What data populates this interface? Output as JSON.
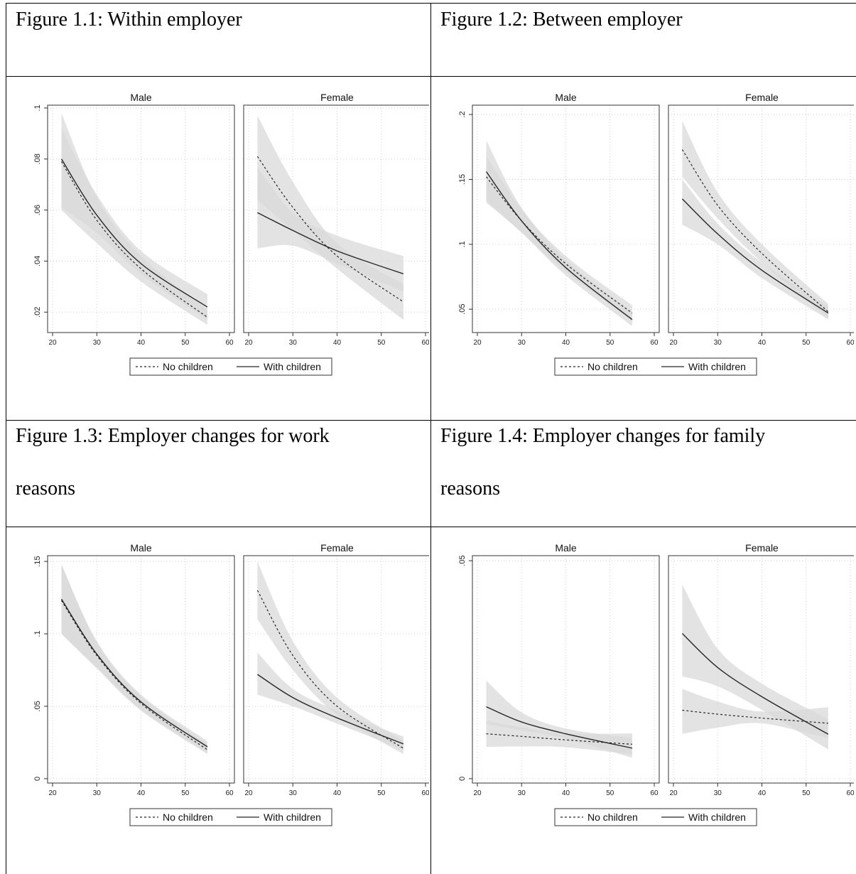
{
  "captions": [
    {
      "line1": "Figure 1.1: Within employer",
      "line2": ""
    },
    {
      "line1": "Figure 1.2: Between employer",
      "line2": ""
    },
    {
      "line1": "Figure 1.3: Employer changes for work",
      "line2": "reasons"
    },
    {
      "line1": "Figure 1.4: Employer changes for family",
      "line2": "reasons"
    }
  ],
  "colors": {
    "line": "#262626",
    "ci_band": "#d9d9d9",
    "grid": "#d0d0d0"
  },
  "chart_data": [
    {
      "type": "line",
      "panels": [
        "Male",
        "Female"
      ],
      "x_ticks": [
        "20",
        "30",
        "40",
        "50",
        "60"
      ],
      "xlim": [
        20,
        60
      ],
      "ylim": [
        0.012,
        0.1
      ],
      "y_ticks": [
        {
          "v": 0.1,
          "label": ".1"
        },
        {
          "v": 0.08,
          "label": ".08"
        },
        {
          "v": 0.06,
          "label": ".06"
        },
        {
          "v": 0.04,
          "label": ".04"
        },
        {
          "v": 0.02,
          "label": ".02"
        }
      ],
      "legend": [
        "No children",
        "With children"
      ],
      "x": [
        22,
        30,
        40,
        55
      ],
      "series": {
        "Male": {
          "No children": {
            "values": [
              0.079,
              0.056,
              0.037,
              0.018
            ],
            "lo": [
              0.06,
              0.047,
              0.032,
              0.015
            ],
            "hi": [
              0.098,
              0.065,
              0.042,
              0.021
            ]
          },
          "With children": {
            "values": [
              0.08,
              0.058,
              0.039,
              0.022
            ],
            "lo": [
              0.061,
              0.051,
              0.035,
              0.017
            ],
            "hi": [
              0.092,
              0.066,
              0.044,
              0.027
            ]
          }
        },
        "Female": {
          "No children": {
            "values": [
              0.081,
              0.061,
              0.042,
              0.024
            ],
            "lo": [
              0.064,
              0.052,
              0.037,
              0.017
            ],
            "hi": [
              0.097,
              0.071,
              0.047,
              0.031
            ]
          },
          "With children": {
            "values": [
              0.059,
              0.052,
              0.044,
              0.035
            ],
            "lo": [
              0.045,
              0.046,
              0.039,
              0.028
            ],
            "hi": [
              0.077,
              0.059,
              0.05,
              0.042
            ]
          }
        }
      }
    },
    {
      "type": "line",
      "panels": [
        "Male",
        "Female"
      ],
      "x_ticks": [
        "20",
        "30",
        "40",
        "50",
        "60"
      ],
      "xlim": [
        20,
        60
      ],
      "ylim": [
        0.032,
        0.205
      ],
      "y_ticks": [
        {
          "v": 0.2,
          "label": ".2"
        },
        {
          "v": 0.15,
          "label": ".15"
        },
        {
          "v": 0.1,
          "label": ".1"
        },
        {
          "v": 0.05,
          "label": ".05"
        }
      ],
      "legend": [
        "No children",
        "With children"
      ],
      "x": [
        22,
        30,
        40,
        55
      ],
      "series": {
        "Male": {
          "No children": {
            "values": [
              0.152,
              0.118,
              0.085,
              0.047
            ],
            "lo": [
              0.134,
              0.109,
              0.079,
              0.041
            ],
            "hi": [
              0.18,
              0.128,
              0.091,
              0.053
            ]
          },
          "With children": {
            "values": [
              0.156,
              0.118,
              0.082,
              0.042
            ],
            "lo": [
              0.132,
              0.109,
              0.076,
              0.037
            ],
            "hi": [
              0.168,
              0.127,
              0.088,
              0.048
            ]
          }
        },
        "Female": {
          "No children": {
            "values": [
              0.173,
              0.13,
              0.093,
              0.048
            ],
            "lo": [
              0.152,
              0.12,
              0.086,
              0.043
            ],
            "hi": [
              0.195,
              0.14,
              0.1,
              0.054
            ]
          },
          "With children": {
            "values": [
              0.135,
              0.108,
              0.08,
              0.047
            ],
            "lo": [
              0.115,
              0.1,
              0.074,
              0.042
            ],
            "hi": [
              0.15,
              0.116,
              0.086,
              0.052
            ]
          }
        }
      }
    },
    {
      "type": "line",
      "panels": [
        "Male",
        "Female"
      ],
      "x_ticks": [
        "20",
        "30",
        "40",
        "50",
        "60"
      ],
      "xlim": [
        20,
        60
      ],
      "ylim": [
        -0.003,
        0.152
      ],
      "y_ticks": [
        {
          "v": 0.15,
          "label": ".15"
        },
        {
          "v": 0.1,
          "label": ".1"
        },
        {
          "v": 0.05,
          "label": ".05"
        },
        {
          "v": 0,
          "label": "0"
        }
      ],
      "legend": [
        "No children",
        "With children"
      ],
      "x": [
        22,
        30,
        40,
        55
      ],
      "series": {
        "Male": {
          "No children": {
            "values": [
              0.123,
              0.085,
              0.052,
              0.02
            ],
            "lo": [
              0.1,
              0.076,
              0.047,
              0.017
            ],
            "hi": [
              0.148,
              0.094,
              0.057,
              0.024
            ]
          },
          "With children": {
            "values": [
              0.124,
              0.086,
              0.053,
              0.022
            ],
            "lo": [
              0.1,
              0.077,
              0.048,
              0.018
            ],
            "hi": [
              0.148,
              0.095,
              0.058,
              0.026
            ]
          }
        },
        "Female": {
          "No children": {
            "values": [
              0.13,
              0.085,
              0.05,
              0.021
            ],
            "lo": [
              0.11,
              0.075,
              0.044,
              0.017
            ],
            "hi": [
              0.15,
              0.095,
              0.056,
              0.026
            ]
          },
          "With children": {
            "values": [
              0.072,
              0.056,
              0.042,
              0.024
            ],
            "lo": [
              0.058,
              0.05,
              0.038,
              0.02
            ],
            "hi": [
              0.087,
              0.062,
              0.047,
              0.029
            ]
          }
        }
      }
    },
    {
      "type": "line",
      "panels": [
        "Male",
        "Female"
      ],
      "x_ticks": [
        "20",
        "30",
        "40",
        "50",
        "60"
      ],
      "xlim": [
        20,
        60
      ],
      "ylim": [
        -0.001,
        0.0505
      ],
      "y_ticks": [
        {
          "v": 0.05,
          "label": ".05"
        },
        {
          "v": 0,
          "label": "0"
        }
      ],
      "legend": [
        "No children",
        "With children"
      ],
      "x": [
        22,
        30,
        40,
        55
      ],
      "series": {
        "Male": {
          "No children": {
            "values": [
              0.0103,
              0.0097,
              0.0089,
              0.0079
            ],
            "lo": [
              0.0073,
              0.0074,
              0.0072,
              0.0056
            ],
            "hi": [
              0.0133,
              0.0118,
              0.0104,
              0.0104
            ]
          },
          "With children": {
            "values": [
              0.0165,
              0.013,
              0.0103,
              0.007
            ],
            "lo": [
              0.0125,
              0.0111,
              0.0092,
              0.0048
            ],
            "hi": [
              0.0225,
              0.0152,
              0.0115,
              0.0093
            ]
          }
        },
        "Female": {
          "No children": {
            "values": [
              0.0157,
              0.0148,
              0.0139,
              0.0127
            ],
            "lo": [
              0.0103,
              0.0117,
              0.0127,
              0.0092
            ],
            "hi": [
              0.0206,
              0.0177,
              0.0154,
              0.0164
            ]
          },
          "With children": {
            "values": [
              0.0333,
              0.0255,
              0.0188,
              0.0102
            ],
            "lo": [
              0.0235,
              0.0212,
              0.0158,
              0.0067
            ],
            "hi": [
              0.0445,
              0.0298,
              0.0218,
              0.0137
            ]
          }
        }
      }
    }
  ]
}
